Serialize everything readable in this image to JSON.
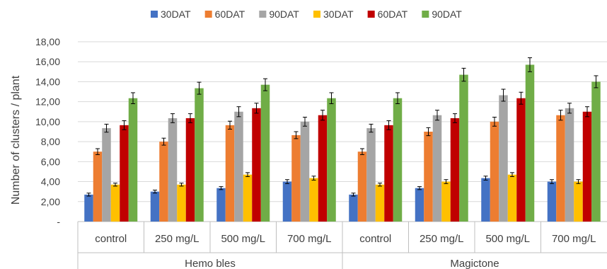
{
  "chart_data": {
    "type": "bar",
    "ylabel": "Number of clusters / plant",
    "ylim": [
      0,
      18
    ],
    "y_ticks": [
      "-",
      "2,00",
      "4,00",
      "6,00",
      "8,00",
      "10,00",
      "12,00",
      "14,00",
      "16,00",
      "18,00"
    ],
    "grid": true,
    "legend_position": "top",
    "groups": [
      {
        "name": "Hemo bles",
        "categories": [
          "control",
          "250 mg/L",
          "500 mg/L",
          "700 mg/L"
        ]
      },
      {
        "name": "Magictone",
        "categories": [
          "control",
          "250 mg/L",
          "500 mg/L",
          "700 mg/L"
        ]
      }
    ],
    "series": [
      {
        "name": "30DAT",
        "color": "#4472C4",
        "values": [
          2.7,
          3.0,
          3.35,
          4.0,
          2.7,
          3.35,
          4.35,
          4.0
        ],
        "errors": [
          0.15,
          0.15,
          0.15,
          0.2,
          0.15,
          0.15,
          0.2,
          0.2
        ]
      },
      {
        "name": "60DAT",
        "color": "#ED7D31",
        "values": [
          7.0,
          8.0,
          9.65,
          8.65,
          7.0,
          9.0,
          10.0,
          10.65
        ],
        "errors": [
          0.3,
          0.35,
          0.4,
          0.35,
          0.3,
          0.4,
          0.45,
          0.5
        ]
      },
      {
        "name": "90DAT",
        "color": "#A5A5A5",
        "values": [
          9.35,
          10.35,
          11.0,
          10.0,
          9.35,
          10.65,
          12.65,
          11.35
        ],
        "errors": [
          0.4,
          0.45,
          0.5,
          0.45,
          0.4,
          0.5,
          0.6,
          0.5
        ]
      },
      {
        "name": "30DAT",
        "color": "#FFC000",
        "values": [
          3.7,
          3.7,
          4.7,
          4.35,
          3.7,
          4.0,
          4.7,
          4.0
        ],
        "errors": [
          0.15,
          0.15,
          0.2,
          0.2,
          0.15,
          0.2,
          0.2,
          0.2
        ]
      },
      {
        "name": "60DAT",
        "color": "#C00000",
        "values": [
          9.65,
          10.35,
          11.35,
          10.65,
          9.65,
          10.35,
          12.35,
          11.0
        ],
        "errors": [
          0.45,
          0.45,
          0.5,
          0.5,
          0.45,
          0.45,
          0.6,
          0.5
        ]
      },
      {
        "name": "90DAT",
        "color": "#70AD47",
        "values": [
          12.35,
          13.35,
          13.7,
          12.35,
          12.35,
          14.7,
          15.7,
          14.0
        ],
        "errors": [
          0.55,
          0.6,
          0.6,
          0.55,
          0.55,
          0.65,
          0.7,
          0.6
        ]
      }
    ]
  }
}
